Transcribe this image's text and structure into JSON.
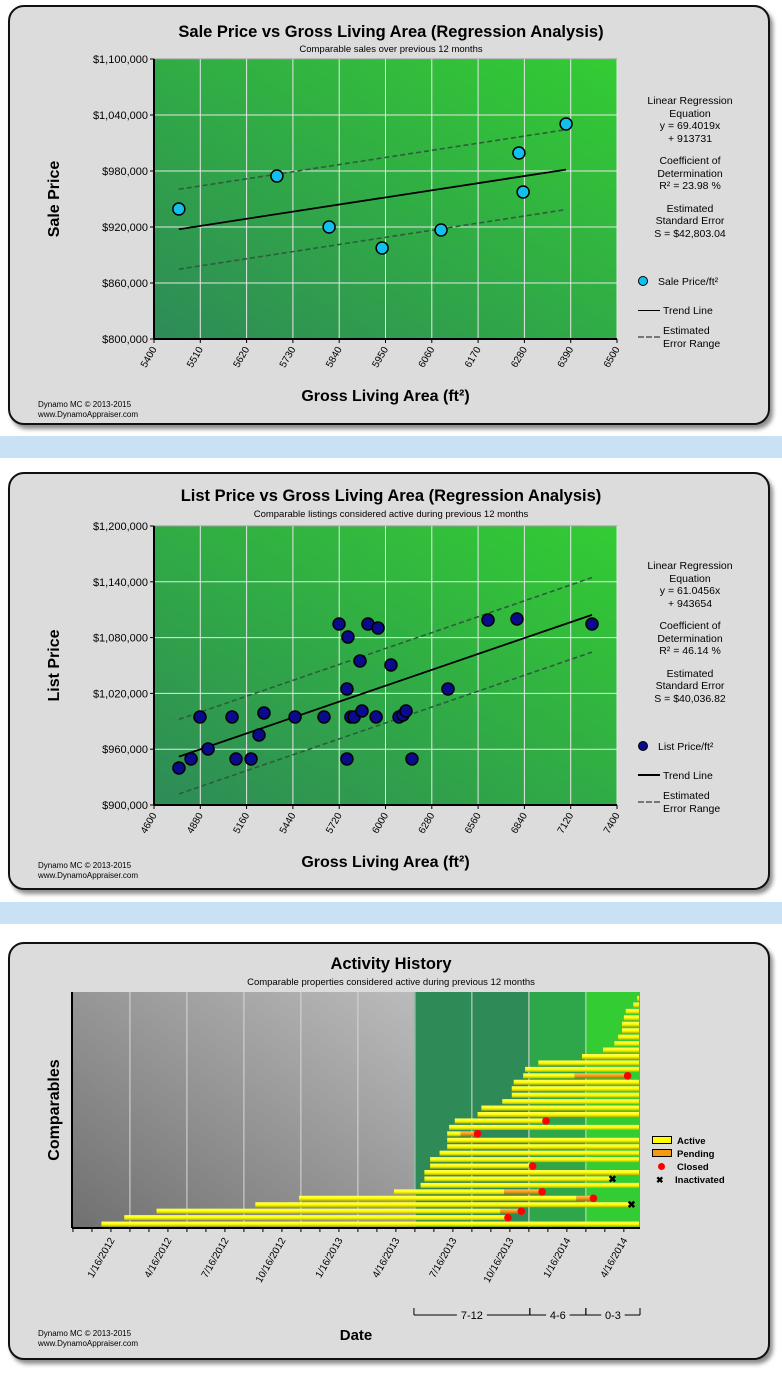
{
  "footer": {
    "line1": "Dynamo MC  © 2013-2015",
    "line2": "www.DynamoAppraiser.com"
  },
  "sale_stats": {
    "eq_label1": "Linear Regression",
    "eq_label2": "Equation",
    "eq_line1": "y = 69.4019x",
    "eq_line2": "+ 913731",
    "r2_label1": "Coefficient of",
    "r2_label2": "Determination",
    "r2_value": "R² = 23.98 %",
    "se_label1": "Estimated",
    "se_label2": "Standard Error",
    "se_value": "S = $42,803.04",
    "legend_points": "Sale Price/ft²",
    "legend_trend": "Trend Line",
    "legend_error1": "Estimated",
    "legend_error2": "Error Range"
  },
  "list_stats": {
    "eq_label1": "Linear Regression",
    "eq_label2": "Equation",
    "eq_line1": "y = 61.0456x",
    "eq_line2": "+ 943654",
    "r2_label1": "Coefficient of",
    "r2_label2": "Determination",
    "r2_value": "R² = 46.14 %",
    "se_label1": "Estimated",
    "se_label2": "Standard Error",
    "se_value": "S = $40,036.82",
    "legend_points": "List Price/ft²",
    "legend_trend": "Trend Line",
    "legend_error1": "Estimated",
    "legend_error2": "Error Range"
  },
  "activity_legend": {
    "active": "Active",
    "pending": "Pending",
    "closed": "Closed",
    "inactivated": "Inactivated"
  },
  "colors": {
    "sale_point": "#12c0f0",
    "list_point": "#0a0a8c",
    "active": "#ffff00",
    "pending": "#f39c12",
    "closed": "#ff0000",
    "panel": "#dcdcdc",
    "separator": "#c8e1f5"
  },
  "chart_data": [
    {
      "type": "scatter",
      "title": "Sale Price vs Gross Living Area (Regression Analysis)",
      "subtitle": "Comparable sales over previous 12 months",
      "xlabel": "Gross Living Area (ft²)",
      "ylabel": "Sale Price",
      "xlim": [
        5400,
        6500
      ],
      "ylim": [
        800000,
        1100000
      ],
      "xticks": [
        "5400",
        "5510",
        "5620",
        "5730",
        "5840",
        "5950",
        "6060",
        "6170",
        "6280",
        "6390",
        "6500"
      ],
      "yticks": [
        "$800,000",
        "$860,000",
        "$920,000",
        "$980,000",
        "$1,040,000",
        "$1,100,000"
      ],
      "ytick_values": [
        800000,
        860000,
        920000,
        980000,
        1040000,
        1100000
      ],
      "trend": {
        "slope": 69.4019,
        "intercept": 913731,
        "x_range": [
          5459,
          6379
        ],
        "std_error": 42803.04
      },
      "grid": true,
      "legend": "right",
      "points": [
        {
          "x": 5459,
          "y": 939300
        },
        {
          "x": 5692,
          "y": 974600
        },
        {
          "x": 5816,
          "y": 920000
        },
        {
          "x": 5942,
          "y": 897500
        },
        {
          "x": 6082,
          "y": 916800
        },
        {
          "x": 6267,
          "y": 999300
        },
        {
          "x": 6277,
          "y": 957500
        },
        {
          "x": 6379,
          "y": 1030400
        }
      ]
    },
    {
      "type": "scatter",
      "title": "List Price vs Gross Living Area (Regression Analysis)",
      "subtitle": "Comparable listings considered active during previous 12 months",
      "xlabel": "Gross Living Area (ft²)",
      "ylabel": "List Price",
      "xlim": [
        4600,
        7400
      ],
      "ylim": [
        900000,
        1200000
      ],
      "xticks": [
        "4600",
        "4880",
        "5160",
        "5440",
        "5720",
        "6000",
        "6280",
        "6560",
        "6840",
        "7120",
        "7400"
      ],
      "yticks": [
        "$900,000",
        "$960,000",
        "$1,020,000",
        "$1,080,000",
        "$1,140,000",
        "$1,200,000"
      ],
      "ytick_values": [
        900000,
        960000,
        1020000,
        1080000,
        1140000,
        1200000
      ],
      "trend": {
        "slope": 61.0456,
        "intercept": 943654,
        "x_range": [
          4751,
          7249
        ],
        "std_error": 40036.82
      },
      "grid": true,
      "legend": "right",
      "points": [
        {
          "x": 4751,
          "y": 939800
        },
        {
          "x": 4824,
          "y": 949500
        },
        {
          "x": 4927,
          "y": 960200
        },
        {
          "x": 4878,
          "y": 994600
        },
        {
          "x": 5072,
          "y": 994600
        },
        {
          "x": 5265,
          "y": 998900
        },
        {
          "x": 5235,
          "y": 975300
        },
        {
          "x": 5096,
          "y": 949500
        },
        {
          "x": 5187,
          "y": 949500
        },
        {
          "x": 5453,
          "y": 994600
        },
        {
          "x": 5628,
          "y": 994600
        },
        {
          "x": 5719,
          "y": 1094600
        },
        {
          "x": 5773,
          "y": 1080600
        },
        {
          "x": 5894,
          "y": 1094600
        },
        {
          "x": 5955,
          "y": 1090300
        },
        {
          "x": 5767,
          "y": 1024700
        },
        {
          "x": 5767,
          "y": 949500
        },
        {
          "x": 5791,
          "y": 994600
        },
        {
          "x": 5810,
          "y": 994600
        },
        {
          "x": 5858,
          "y": 1001100
        },
        {
          "x": 5846,
          "y": 1054800
        },
        {
          "x": 5943,
          "y": 994600
        },
        {
          "x": 6033,
          "y": 1050500
        },
        {
          "x": 6082,
          "y": 994600
        },
        {
          "x": 6106,
          "y": 996800
        },
        {
          "x": 6124,
          "y": 1001100
        },
        {
          "x": 6160,
          "y": 949500
        },
        {
          "x": 6378,
          "y": 1024700
        },
        {
          "x": 6620,
          "y": 1098900
        },
        {
          "x": 6795,
          "y": 1100000
        },
        {
          "x": 7249,
          "y": 1094600
        }
      ]
    },
    {
      "type": "timeline",
      "title": "Activity History",
      "subtitle": "Comparable properties considered active during previous 12 months",
      "xlabel": "Date",
      "ylabel": "Comparables",
      "x_units": "months since 1/16/2012",
      "xlim": [
        -2.05,
        27.85
      ],
      "xticks": [
        "1/16/2012",
        "4/16/2012",
        "7/16/2012",
        "10/16/2012",
        "1/16/2013",
        "4/16/2013",
        "7/16/2013",
        "10/16/2013",
        "1/16/2014",
        "4/16/2014"
      ],
      "xtick_values": [
        0,
        3,
        6,
        9,
        12,
        15,
        18,
        21,
        24,
        27
      ],
      "periods": [
        {
          "label": "7-12",
          "from": 15.95,
          "to": 22.05
        },
        {
          "label": "4-6",
          "from": 22.05,
          "to": 25.0
        },
        {
          "label": "0-3",
          "from": 25.0,
          "to": 27.85
        }
      ],
      "legend": "right",
      "bars": [
        {
          "start": 27.7,
          "end": 27.8
        },
        {
          "start": 27.5,
          "end": 27.8
        },
        {
          "start": 27.1,
          "end": 27.8
        },
        {
          "start": 27.0,
          "end": 27.8
        },
        {
          "start": 26.9,
          "end": 27.8
        },
        {
          "start": 26.9,
          "end": 27.8
        },
        {
          "start": 26.7,
          "end": 27.8
        },
        {
          "start": 26.5,
          "end": 27.8
        },
        {
          "start": 25.9,
          "end": 27.8
        },
        {
          "start": 24.8,
          "end": 27.8
        },
        {
          "start": 22.5,
          "end": 27.8
        },
        {
          "start": 21.8,
          "end": 27.8
        },
        {
          "start": 21.7,
          "end": 27.2,
          "pending": 24.4,
          "closed": 27.2
        },
        {
          "start": 21.2,
          "end": 27.8
        },
        {
          "start": 21.1,
          "end": 27.8
        },
        {
          "start": 21.1,
          "end": 27.8
        },
        {
          "start": 20.6,
          "end": 27.8
        },
        {
          "start": 19.5,
          "end": 27.8
        },
        {
          "start": 19.3,
          "end": 27.8
        },
        {
          "start": 18.1,
          "end": 22.9,
          "closed": 22.9
        },
        {
          "start": 17.8,
          "end": 27.8
        },
        {
          "start": 17.7,
          "end": 19.3,
          "pending": 18.4,
          "closed": 19.3
        },
        {
          "start": 17.7,
          "end": 27.8
        },
        {
          "start": 17.7,
          "end": 27.8
        },
        {
          "start": 17.3,
          "end": 27.8
        },
        {
          "start": 16.8,
          "end": 27.8
        },
        {
          "start": 16.8,
          "end": 22.2,
          "closed": 22.2
        },
        {
          "start": 16.5,
          "end": 27.8
        },
        {
          "start": 16.5,
          "end": 26.4,
          "inactivated": 26.4
        },
        {
          "start": 16.3,
          "end": 27.8
        },
        {
          "start": 14.9,
          "end": 22.7,
          "pending": 20.7,
          "closed": 22.7
        },
        {
          "start": 9.9,
          "end": 25.4,
          "pending": 24.5,
          "closed": 25.4
        },
        {
          "start": 7.6,
          "end": 27.4,
          "inactivated": 27.4
        },
        {
          "start": 2.4,
          "end": 21.6,
          "pending": 20.5,
          "closed": 21.6
        },
        {
          "start": 0.7,
          "end": 20.9,
          "closed": 20.9
        },
        {
          "start": -0.5,
          "end": 27.8
        }
      ]
    }
  ]
}
